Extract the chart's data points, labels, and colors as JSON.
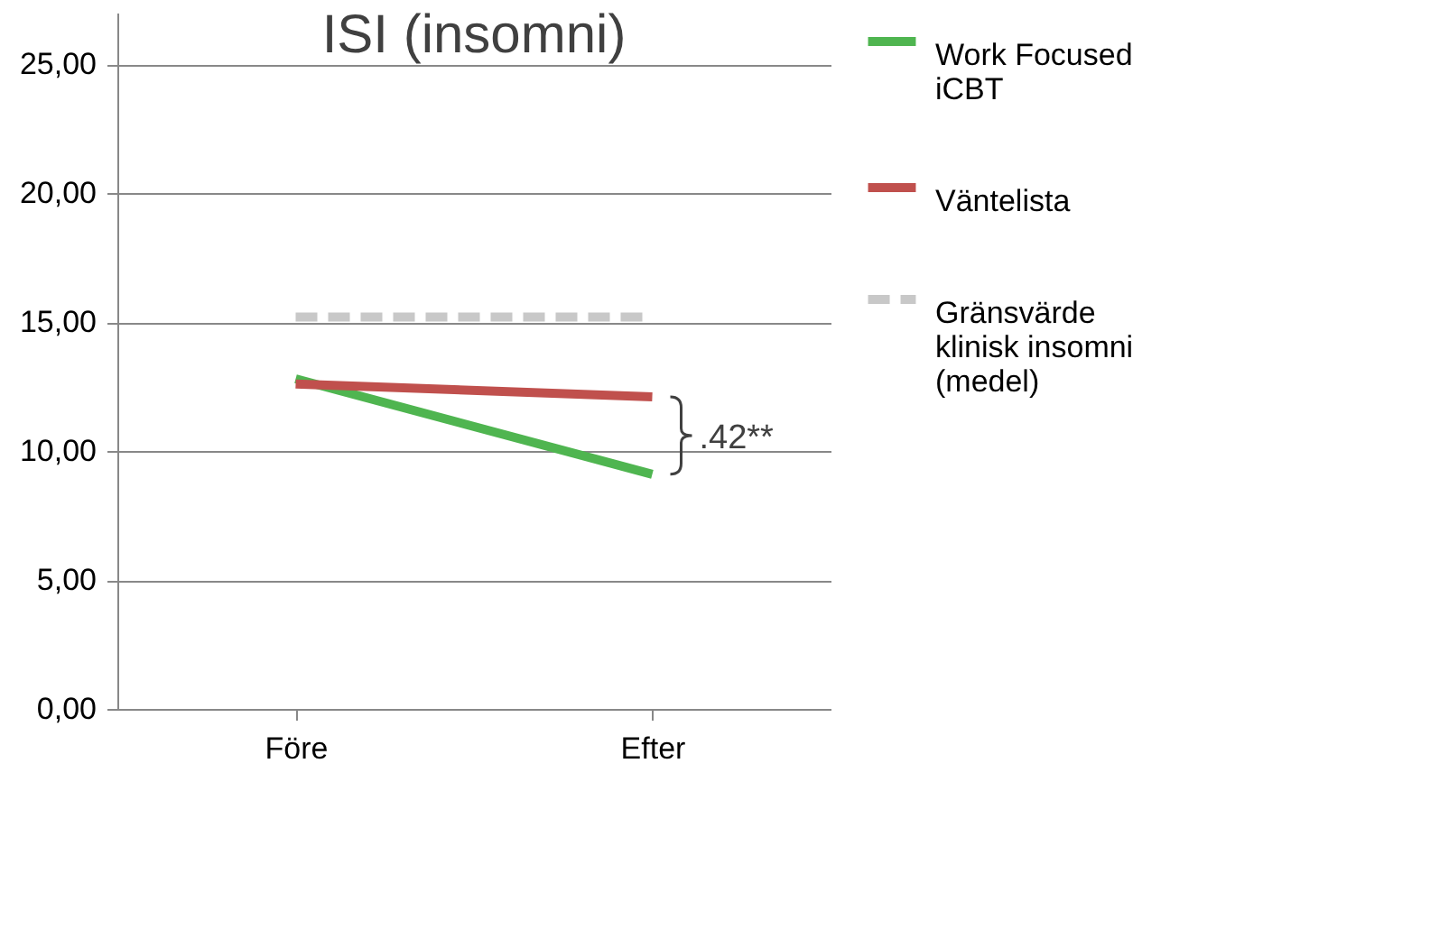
{
  "chart_data": {
    "type": "line",
    "title": "ISI (insomni)",
    "categories": [
      "Före",
      "Efter"
    ],
    "series": [
      {
        "name": "Work Focused iCBT",
        "color": "#4fb550",
        "values": [
          12.8,
          9.1
        ]
      },
      {
        "name": "Väntelista",
        "color": "#c0504d",
        "values": [
          12.6,
          12.1
        ]
      },
      {
        "name": "Gränsvärde klinisk insomni (medel)",
        "color": "#c8c8c8",
        "values": [
          15.2,
          15.2
        ],
        "line_style": "dashed"
      }
    ],
    "ylim": [
      0,
      27
    ],
    "yticks": [
      {
        "value": 0,
        "label": "0,00"
      },
      {
        "value": 5,
        "label": "5,00"
      },
      {
        "value": 10,
        "label": "10,00"
      },
      {
        "value": 15,
        "label": "15,00"
      },
      {
        "value": 20,
        "label": "20,00"
      },
      {
        "value": 25,
        "label": "25,00"
      }
    ],
    "grid": "y",
    "legend": "right",
    "marker": "none",
    "line_style": "solid",
    "annotations": [
      ".42**"
    ]
  }
}
